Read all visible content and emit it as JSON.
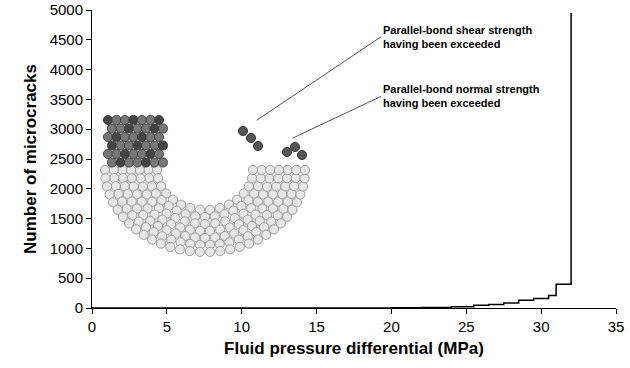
{
  "chart_data": {
    "type": "line",
    "line_style": "step",
    "color": "#000000",
    "x_label": "Fluid pressure differential (MPa)",
    "y_label": "Number of microcracks",
    "x": [
      0,
      5,
      10,
      15,
      18,
      20,
      22,
      24,
      25.5,
      26.5,
      27.5,
      28.5,
      29.5,
      30.5,
      31,
      32,
      32
    ],
    "values": [
      0,
      0,
      0,
      0,
      2,
      5,
      10,
      20,
      45,
      60,
      85,
      130,
      160,
      210,
      400,
      400,
      4950
    ],
    "xlim": [
      0,
      35
    ],
    "xticks": [
      0,
      5,
      10,
      15,
      20,
      25,
      30,
      35
    ],
    "ylim": [
      0,
      5000
    ],
    "yticks": [
      0,
      500,
      1000,
      1500,
      2000,
      2500,
      3000,
      3500,
      4000,
      4500,
      5000
    ],
    "grid": false,
    "annotations": [
      {
        "text": [
          "Parallel-bond shear strength",
          "having been exceeded"
        ]
      },
      {
        "text": [
          "Parallel-bond normal strength",
          "having been exceeded"
        ]
      }
    ]
  }
}
